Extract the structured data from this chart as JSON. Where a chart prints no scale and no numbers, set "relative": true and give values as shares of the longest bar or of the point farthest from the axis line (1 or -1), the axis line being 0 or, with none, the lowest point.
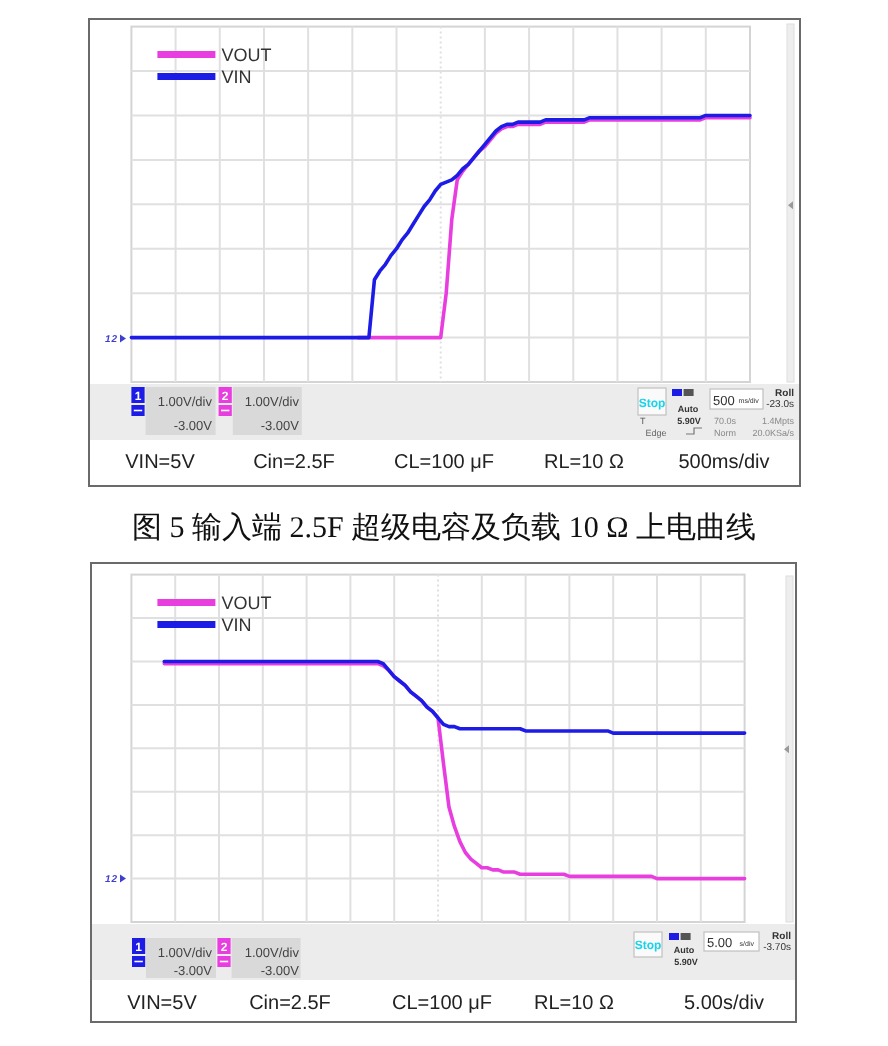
{
  "chart_data": [
    {
      "type": "line",
      "relative": true,
      "grid": true,
      "legend": "top left",
      "categories": [
        null,
        null,
        null,
        null,
        null,
        null,
        null,
        null,
        null,
        null,
        null,
        null,
        null,
        null,
        null,
        null,
        null,
        null,
        null,
        null,
        null,
        null,
        null,
        null,
        null,
        null,
        null,
        null,
        null,
        null,
        null,
        null,
        null,
        null,
        null,
        null,
        null,
        null,
        null,
        null,
        null,
        null,
        null,
        null,
        null,
        null,
        null,
        null,
        null,
        null,
        null,
        null,
        null,
        null,
        null,
        null,
        null,
        null,
        null,
        null,
        null,
        null,
        null,
        null,
        null,
        null,
        null,
        null,
        null,
        null,
        null,
        null,
        null,
        null,
        null,
        null,
        null,
        null,
        null,
        null,
        null,
        null,
        null,
        null,
        null,
        null,
        null,
        null,
        null,
        null,
        null,
        null,
        null,
        null,
        null,
        null,
        null,
        null,
        null,
        null,
        null,
        null,
        null,
        null,
        null,
        null,
        null,
        null,
        null,
        null,
        null,
        null,
        null
      ],
      "series": [
        {
          "name": "VOUT",
          "color": "#e83ee0",
          "values": [
            null,
            null,
            null,
            null,
            null,
            null,
            null,
            null,
            null,
            null,
            null,
            null,
            null,
            null,
            null,
            null,
            null,
            null,
            null,
            null,
            null,
            null,
            null,
            null,
            null,
            null,
            null,
            null,
            null,
            null,
            null,
            null,
            null,
            null,
            null,
            null,
            null,
            null,
            null,
            null,
            null,
            0,
            0,
            0,
            0,
            0,
            0,
            0,
            0,
            0,
            0,
            0,
            0,
            0,
            0,
            0,
            0,
            0.2,
            0.53,
            0.71,
            0.75,
            0.78,
            0.81,
            0.84,
            0.86,
            0.89,
            0.92,
            0.94,
            0.95,
            0.95,
            0.96,
            0.96,
            0.96,
            0.96,
            0.96,
            0.97,
            0.97,
            0.97,
            0.97,
            0.97,
            0.97,
            0.97,
            0.97,
            0.98,
            0.98,
            0.98,
            0.98,
            0.98,
            0.98,
            0.98,
            0.98,
            0.98,
            0.98,
            0.98,
            0.98,
            0.98,
            0.98,
            0.98,
            0.98,
            0.98,
            0.98,
            0.98,
            0.98,
            0.98,
            0.99,
            0.99,
            0.99,
            0.99,
            0.99,
            0.99,
            0.99,
            0.99,
            0.99
          ]
        },
        {
          "name": "VIN",
          "color": "#1c1ce6",
          "values": [
            0,
            0,
            0,
            0,
            0,
            0,
            0,
            0,
            0,
            0,
            0,
            0,
            0,
            0,
            0,
            0,
            0,
            0,
            0,
            0,
            0,
            0,
            0,
            0,
            0,
            0,
            0,
            0,
            0,
            0,
            0,
            0,
            0,
            0,
            0,
            0,
            0,
            0,
            0,
            0,
            0,
            0,
            0,
            0,
            0.26,
            0.3,
            0.33,
            0.37,
            0.4,
            0.44,
            0.47,
            0.51,
            0.55,
            0.59,
            0.62,
            0.66,
            0.69,
            0.7,
            0.71,
            0.73,
            0.76,
            0.78,
            0.81,
            0.84,
            0.87,
            0.9,
            0.93,
            0.95,
            0.96,
            0.96,
            0.97,
            0.97,
            0.97,
            0.97,
            0.97,
            0.98,
            0.98,
            0.98,
            0.98,
            0.98,
            0.98,
            0.98,
            0.98,
            0.99,
            0.99,
            0.99,
            0.99,
            0.99,
            0.99,
            0.99,
            0.99,
            0.99,
            0.99,
            0.99,
            0.99,
            0.99,
            0.99,
            0.99,
            0.99,
            0.99,
            0.99,
            0.99,
            0.99,
            0.99,
            1,
            1,
            1,
            1,
            1,
            1,
            1,
            1,
            1
          ]
        }
      ],
      "annotations": [
        "1",
        "1.00V/div",
        "-3.00V",
        "2",
        "1.00V/div",
        "-3.00V",
        "Stop",
        "Auto",
        "T",
        "5.90V",
        "Edge",
        "500",
        "ms/div",
        "Roll",
        "-23.0s",
        "70.0s",
        "1.4Mpts",
        "Norm",
        "20.0KSa/s",
        "VIN=5V",
        "Cin=2.5F",
        "CL=100 μF",
        "RL=10 Ω",
        "500ms/div",
        "1",
        "2",
        "图 5 输入端 2.5F 超级电容及负载 10 Ω 上电曲线"
      ]
    },
    {
      "type": "line",
      "relative": true,
      "grid": true,
      "legend": "top left",
      "categories": [
        null,
        null,
        null,
        null,
        null,
        null,
        null,
        null,
        null,
        null,
        null,
        null,
        null,
        null,
        null,
        null,
        null,
        null,
        null,
        null,
        null,
        null,
        null,
        null,
        null,
        null,
        null,
        null,
        null,
        null,
        null,
        null,
        null,
        null,
        null,
        null,
        null,
        null,
        null,
        null,
        null,
        null,
        null,
        null,
        null,
        null,
        null,
        null,
        null,
        null,
        null,
        null,
        null,
        null,
        null,
        null,
        null,
        null,
        null,
        null,
        null,
        null,
        null,
        null,
        null,
        null,
        null,
        null,
        null,
        null,
        null,
        null,
        null,
        null,
        null,
        null,
        null,
        null,
        null,
        null,
        null,
        null,
        null,
        null,
        null,
        null,
        null,
        null,
        null,
        null,
        null,
        null,
        null,
        null,
        null,
        null,
        null,
        null,
        null,
        null,
        null,
        null,
        null,
        null,
        null,
        null,
        null,
        null,
        null,
        null,
        null,
        null,
        null
      ],
      "series": [
        {
          "name": "VOUT",
          "color": "#e83ee0",
          "values": [
            null,
            null,
            null,
            null,
            null,
            null,
            0.99,
            0.99,
            0.99,
            0.99,
            0.99,
            0.99,
            0.99,
            0.99,
            0.99,
            0.99,
            0.99,
            0.99,
            0.99,
            0.99,
            0.99,
            0.99,
            0.99,
            0.99,
            0.99,
            0.99,
            0.99,
            0.99,
            0.99,
            0.99,
            0.99,
            0.99,
            0.99,
            0.99,
            0.99,
            0.99,
            0.99,
            0.99,
            0.99,
            0.99,
            0.99,
            0.99,
            0.99,
            0.99,
            0.99,
            0.99,
            0.98,
            0.96,
            0.93,
            0.91,
            0.89,
            0.86,
            0.84,
            0.82,
            0.79,
            0.77,
            0.74,
            0.53,
            0.33,
            0.24,
            0.17,
            0.12,
            0.09,
            0.07,
            0.05,
            0.05,
            0.04,
            0.04,
            0.03,
            0.03,
            0.03,
            0.02,
            0.02,
            0.02,
            0.02,
            0.02,
            0.02,
            0.02,
            0.02,
            0.02,
            0.01,
            0.01,
            0.01,
            0.01,
            0.01,
            0.01,
            0.01,
            0.01,
            0.01,
            0.01,
            0.01,
            0.01,
            0.01,
            0.01,
            0.01,
            0.01,
            0,
            0,
            0,
            0,
            0,
            0,
            0,
            0,
            0,
            0,
            0,
            0,
            0,
            0,
            0,
            0,
            0
          ]
        },
        {
          "name": "VIN",
          "color": "#1c1ce6",
          "values": [
            null,
            null,
            null,
            null,
            null,
            null,
            1,
            1,
            1,
            1,
            1,
            1,
            1,
            1,
            1,
            1,
            1,
            1,
            1,
            1,
            1,
            1,
            1,
            1,
            1,
            1,
            1,
            1,
            1,
            1,
            1,
            1,
            1,
            1,
            1,
            1,
            1,
            1,
            1,
            1,
            1,
            1,
            1,
            1,
            1,
            1,
            0.99,
            0.96,
            0.93,
            0.91,
            0.89,
            0.86,
            0.84,
            0.82,
            0.79,
            0.77,
            0.74,
            0.71,
            0.7,
            0.7,
            0.69,
            0.69,
            0.69,
            0.69,
            0.69,
            0.69,
            0.69,
            0.69,
            0.69,
            0.69,
            0.69,
            0.69,
            0.68,
            0.68,
            0.68,
            0.68,
            0.68,
            0.68,
            0.68,
            0.68,
            0.68,
            0.68,
            0.68,
            0.68,
            0.68,
            0.68,
            0.68,
            0.68,
            0.67,
            0.67,
            0.67,
            0.67,
            0.67,
            0.67,
            0.67,
            0.67,
            0.67,
            0.67,
            0.67,
            0.67,
            0.67,
            0.67,
            0.67,
            0.67,
            0.67,
            0.67,
            0.67,
            0.67,
            0.67,
            0.67,
            0.67,
            0.67,
            0.67
          ]
        }
      ],
      "annotations": [
        "1",
        "1.00V/div",
        "-3.00V",
        "2",
        "1.00V/div",
        "-3.00V",
        "Stop",
        "Auto",
        "5.90V",
        "5.00",
        "s/div",
        "Roll",
        "-3.70s",
        "VIN=5V",
        "Cin=2.5F",
        "CL=100 μF",
        "RL=10 Ω",
        "5.00s/div",
        "1",
        "2"
      ]
    }
  ]
}
